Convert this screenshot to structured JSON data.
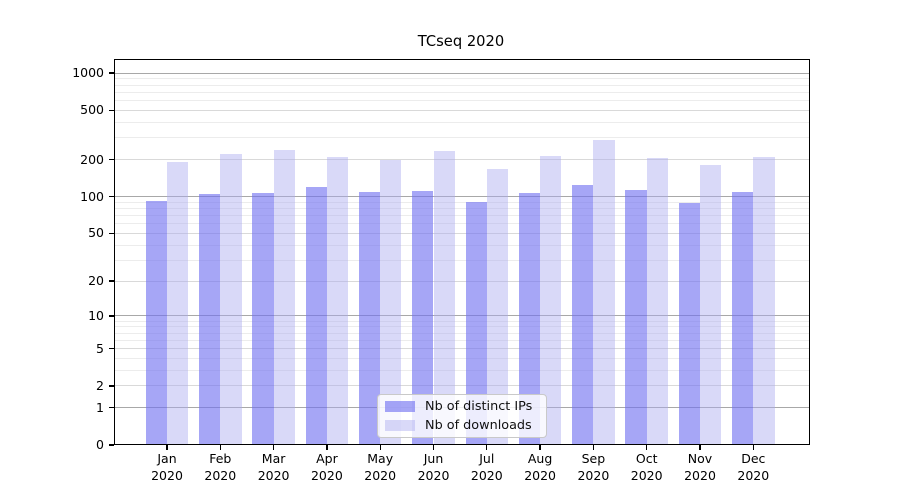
{
  "chart_data": {
    "type": "bar",
    "title": "TCseq 2020",
    "categories": [
      "Jan",
      "Feb",
      "Mar",
      "Apr",
      "May",
      "Jun",
      "Jul",
      "Aug",
      "Sep",
      "Oct",
      "Nov",
      "Dec"
    ],
    "category_year": "2020",
    "series": [
      {
        "name": "Nb of distinct IPs",
        "key": "ips",
        "color": "rgba(112,112,240,0.62)",
        "values": [
          92,
          105,
          107,
          120,
          108,
          112,
          90,
          106,
          124,
          114,
          88,
          109
        ]
      },
      {
        "name": "Nb of downloads",
        "key": "downloads",
        "color": "rgba(170,170,240,0.45)",
        "values": [
          190,
          220,
          240,
          210,
          199,
          236,
          168,
          212,
          290,
          204,
          179,
          211
        ]
      }
    ],
    "yscale": "log1p",
    "ylim": [
      0,
      1300
    ],
    "y_ticks": [
      0,
      1,
      2,
      5,
      10,
      20,
      50,
      100,
      200,
      500,
      1000
    ],
    "y_tick_labels": [
      "0",
      "1",
      "2",
      "5",
      "10",
      "20",
      "50",
      "100",
      "200",
      "500",
      "1000"
    ],
    "grid": {
      "major_dark_values": [
        1,
        10,
        100,
        1000
      ],
      "major_light_values": [
        2,
        5,
        20,
        50,
        200,
        500
      ],
      "minor_values": [
        3,
        4,
        6,
        7,
        8,
        9,
        30,
        40,
        60,
        70,
        80,
        90,
        300,
        400,
        600,
        700,
        800,
        900
      ]
    },
    "legend_position": "lower center",
    "xlabel": "",
    "ylabel": ""
  },
  "colors": {
    "grid_dark": "#a8a8a8",
    "grid_light": "#d9d9d9",
    "grid_minor": "#ececec",
    "spine": "#000000",
    "legend_border": "#c9c9c9",
    "text": "#000000"
  }
}
